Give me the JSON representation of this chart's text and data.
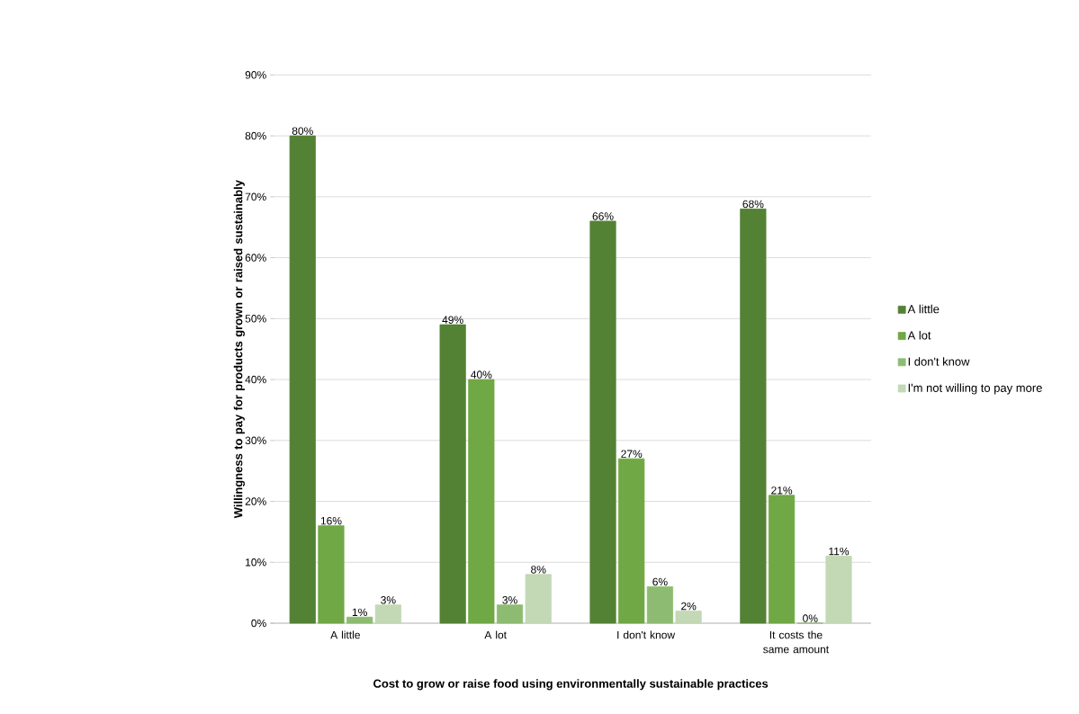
{
  "chart_data": {
    "type": "bar",
    "xlabel": "Cost to grow or raise food using environmentally sustainable practices",
    "ylabel": "Willingness to pay for products grown or raised sustainably",
    "categories": [
      "A little",
      "A lot",
      "I don't know",
      "It costs the same amount"
    ],
    "series": [
      {
        "name": "A little",
        "color": "#548235",
        "values": [
          80,
          49,
          66,
          68
        ],
        "value_labels": [
          "80%",
          "49%",
          "66%",
          "68%"
        ]
      },
      {
        "name": "A lot",
        "color": "#70a845",
        "values": [
          16,
          40,
          27,
          21
        ],
        "value_labels": [
          "16%",
          "40%",
          "27%",
          "21%"
        ]
      },
      {
        "name": "I don't know",
        "color": "#8dbb72",
        "values": [
          1,
          3,
          6,
          0
        ],
        "value_labels": [
          "1%",
          "3%",
          "6%",
          "0%"
        ]
      },
      {
        "name": "I'm not willing to pay more",
        "color": "#c3d8b5",
        "values": [
          3,
          8,
          2,
          11
        ],
        "value_labels": [
          "3%",
          "8%",
          "2%",
          "11%"
        ]
      }
    ],
    "ylim": [
      0,
      90
    ],
    "yticks": [
      {
        "value": 0,
        "label": "0%"
      },
      {
        "value": 10,
        "label": "10%"
      },
      {
        "value": 20,
        "label": "20%"
      },
      {
        "value": 30,
        "label": "30%"
      },
      {
        "value": 40,
        "label": "40%"
      },
      {
        "value": 50,
        "label": "50%"
      },
      {
        "value": 60,
        "label": "60%"
      },
      {
        "value": 70,
        "label": "70%"
      },
      {
        "value": 80,
        "label": "80%"
      },
      {
        "value": 90,
        "label": "90%"
      }
    ],
    "grid": "y",
    "legend": "right"
  }
}
